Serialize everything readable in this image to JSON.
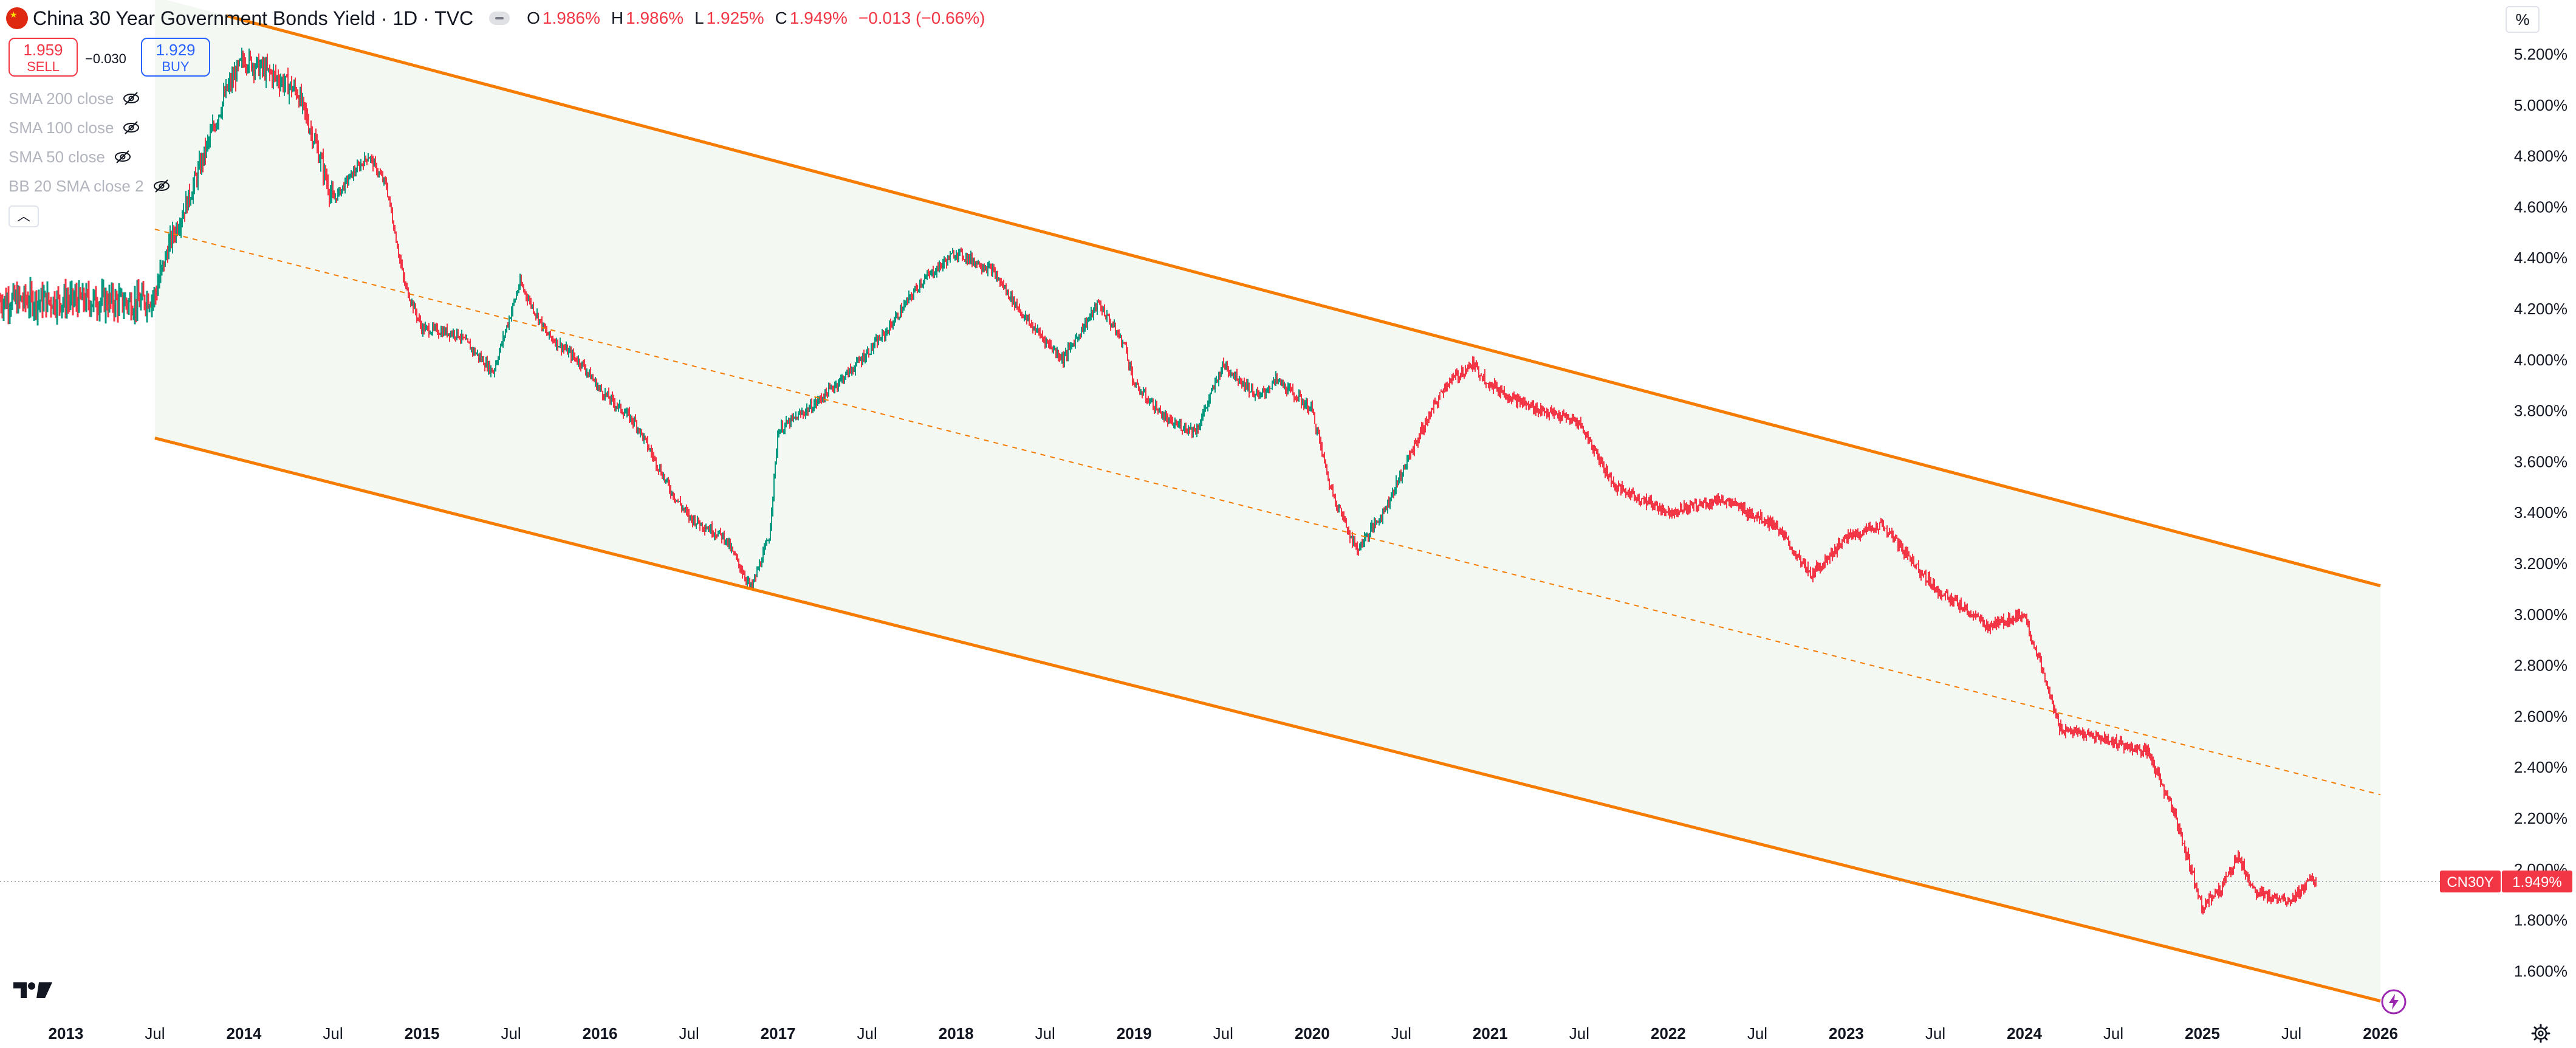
{
  "header": {
    "title": "China 30 Year Government Bonds Yield · 1D · TVC",
    "ohlc": [
      {
        "key": "O",
        "value": "1.986%"
      },
      {
        "key": "H",
        "value": "1.986%"
      },
      {
        "key": "L",
        "value": "1.925%"
      },
      {
        "key": "C",
        "value": "1.949%"
      }
    ],
    "change": "−0.013 (−0.66%)"
  },
  "trade": {
    "sell_price": "1.959",
    "sell_label": "SELL",
    "spread": "−0.030",
    "buy_price": "1.929",
    "buy_label": "BUY"
  },
  "indicators": [
    {
      "label": "SMA 200 close"
    },
    {
      "label": "SMA 100 close"
    },
    {
      "label": "SMA 50 close"
    },
    {
      "label": "BB 20 SMA close 2"
    }
  ],
  "scale_button": "%",
  "price_axis": {
    "min": 1.45,
    "max": 5.28,
    "ticks": [
      "5.200%",
      "5.000%",
      "4.800%",
      "4.600%",
      "4.400%",
      "4.200%",
      "4.000%",
      "3.800%",
      "3.600%",
      "3.400%",
      "3.200%",
      "3.000%",
      "2.800%",
      "2.600%",
      "2.400%",
      "2.200%",
      "2.000%",
      "1.800%",
      "1.600%"
    ]
  },
  "time_axis": {
    "start": 2012.63,
    "end": 2026.45,
    "ticks": [
      {
        "t": 2013.0,
        "label": "2013",
        "bold": true
      },
      {
        "t": 2013.5,
        "label": "Jul",
        "bold": false
      },
      {
        "t": 2014.0,
        "label": "2014",
        "bold": true
      },
      {
        "t": 2014.5,
        "label": "Jul",
        "bold": false
      },
      {
        "t": 2015.0,
        "label": "2015",
        "bold": true
      },
      {
        "t": 2015.5,
        "label": "Jul",
        "bold": false
      },
      {
        "t": 2016.0,
        "label": "2016",
        "bold": true
      },
      {
        "t": 2016.5,
        "label": "Jul",
        "bold": false
      },
      {
        "t": 2017.0,
        "label": "2017",
        "bold": true
      },
      {
        "t": 2017.5,
        "label": "Jul",
        "bold": false
      },
      {
        "t": 2018.0,
        "label": "2018",
        "bold": true
      },
      {
        "t": 2018.5,
        "label": "Jul",
        "bold": false
      },
      {
        "t": 2019.0,
        "label": "2019",
        "bold": true
      },
      {
        "t": 2019.5,
        "label": "Jul",
        "bold": false
      },
      {
        "t": 2020.0,
        "label": "2020",
        "bold": true
      },
      {
        "t": 2020.5,
        "label": "Jul",
        "bold": false
      },
      {
        "t": 2021.0,
        "label": "2021",
        "bold": true
      },
      {
        "t": 2021.5,
        "label": "Jul",
        "bold": false
      },
      {
        "t": 2022.0,
        "label": "2022",
        "bold": true
      },
      {
        "t": 2022.5,
        "label": "Jul",
        "bold": false
      },
      {
        "t": 2023.0,
        "label": "2023",
        "bold": true
      },
      {
        "t": 2023.5,
        "label": "Jul",
        "bold": false
      },
      {
        "t": 2024.0,
        "label": "2024",
        "bold": true
      },
      {
        "t": 2024.5,
        "label": "Jul",
        "bold": false
      },
      {
        "t": 2025.0,
        "label": "2025",
        "bold": true
      },
      {
        "t": 2025.5,
        "label": "Jul",
        "bold": false
      },
      {
        "t": 2026.0,
        "label": "2026",
        "bold": true
      }
    ]
  },
  "last_price": {
    "symbol": "CN30Y",
    "value": "1.949%",
    "level": 1.949
  },
  "colors": {
    "up": "#089981",
    "down": "#f23645",
    "channel": "#f57c00",
    "fill": "#f4f8f3",
    "axis_text": "#131722",
    "grid_text": "#131722"
  },
  "chart_data": {
    "type": "candlestick",
    "title": "China 30 Year Government Bonds Yield",
    "units": "%",
    "series": [
      {
        "name": "CN30Y",
        "points": [
          [
            2012.63,
            4.23
          ],
          [
            2013.0,
            4.23
          ],
          [
            2013.2,
            4.23
          ],
          [
            2013.4,
            4.22
          ],
          [
            2013.5,
            4.25
          ],
          [
            2013.58,
            4.45
          ],
          [
            2013.7,
            4.65
          ],
          [
            2013.8,
            4.85
          ],
          [
            2013.9,
            5.05
          ],
          [
            2014.0,
            5.18
          ],
          [
            2014.15,
            5.12
          ],
          [
            2014.3,
            5.05
          ],
          [
            2014.4,
            4.85
          ],
          [
            2014.5,
            4.62
          ],
          [
            2014.6,
            4.72
          ],
          [
            2014.7,
            4.8
          ],
          [
            2014.8,
            4.68
          ],
          [
            2014.9,
            4.3
          ],
          [
            2015.0,
            4.12
          ],
          [
            2015.2,
            4.1
          ],
          [
            2015.4,
            3.95
          ],
          [
            2015.55,
            4.3
          ],
          [
            2015.7,
            4.1
          ],
          [
            2015.9,
            3.98
          ],
          [
            2016.0,
            3.88
          ],
          [
            2016.2,
            3.75
          ],
          [
            2016.4,
            3.48
          ],
          [
            2016.5,
            3.38
          ],
          [
            2016.7,
            3.3
          ],
          [
            2016.85,
            3.1
          ],
          [
            2016.95,
            3.3
          ],
          [
            2017.0,
            3.72
          ],
          [
            2017.2,
            3.82
          ],
          [
            2017.4,
            3.95
          ],
          [
            2017.6,
            4.1
          ],
          [
            2017.8,
            4.3
          ],
          [
            2018.0,
            4.42
          ],
          [
            2018.2,
            4.35
          ],
          [
            2018.4,
            4.15
          ],
          [
            2018.6,
            4.0
          ],
          [
            2018.8,
            4.22
          ],
          [
            2018.95,
            4.05
          ],
          [
            2019.0,
            3.9
          ],
          [
            2019.2,
            3.75
          ],
          [
            2019.35,
            3.72
          ],
          [
            2019.5,
            3.98
          ],
          [
            2019.7,
            3.85
          ],
          [
            2019.8,
            3.92
          ],
          [
            2020.0,
            3.8
          ],
          [
            2020.1,
            3.5
          ],
          [
            2020.25,
            3.25
          ],
          [
            2020.4,
            3.4
          ],
          [
            2020.6,
            3.7
          ],
          [
            2020.75,
            3.9
          ],
          [
            2020.9,
            3.98
          ],
          [
            2021.0,
            3.9
          ],
          [
            2021.2,
            3.82
          ],
          [
            2021.5,
            3.75
          ],
          [
            2021.7,
            3.5
          ],
          [
            2022.0,
            3.4
          ],
          [
            2022.3,
            3.45
          ],
          [
            2022.6,
            3.35
          ],
          [
            2022.8,
            3.15
          ],
          [
            2023.0,
            3.3
          ],
          [
            2023.2,
            3.35
          ],
          [
            2023.5,
            3.1
          ],
          [
            2023.8,
            2.95
          ],
          [
            2024.0,
            3.0
          ],
          [
            2024.2,
            2.55
          ],
          [
            2024.5,
            2.5
          ],
          [
            2024.7,
            2.45
          ],
          [
            2024.85,
            2.2
          ],
          [
            2025.0,
            1.85
          ],
          [
            2025.1,
            1.92
          ],
          [
            2025.2,
            2.05
          ],
          [
            2025.3,
            1.9
          ],
          [
            2025.5,
            1.88
          ],
          [
            2025.6,
            1.95
          ],
          [
            2025.64,
            1.949
          ]
        ]
      }
    ],
    "channel": {
      "upper": [
        [
          2014.0,
          5.33
        ],
        [
          2026.0,
          3.11
        ]
      ],
      "median": [
        [
          2013.5,
          4.51
        ],
        [
          2026.0,
          2.29
        ]
      ],
      "lower": [
        [
          2013.5,
          3.69
        ],
        [
          2026.0,
          1.48
        ]
      ]
    },
    "ylim": [
      1.45,
      5.28
    ],
    "xlabel": "",
    "ylabel": ""
  }
}
